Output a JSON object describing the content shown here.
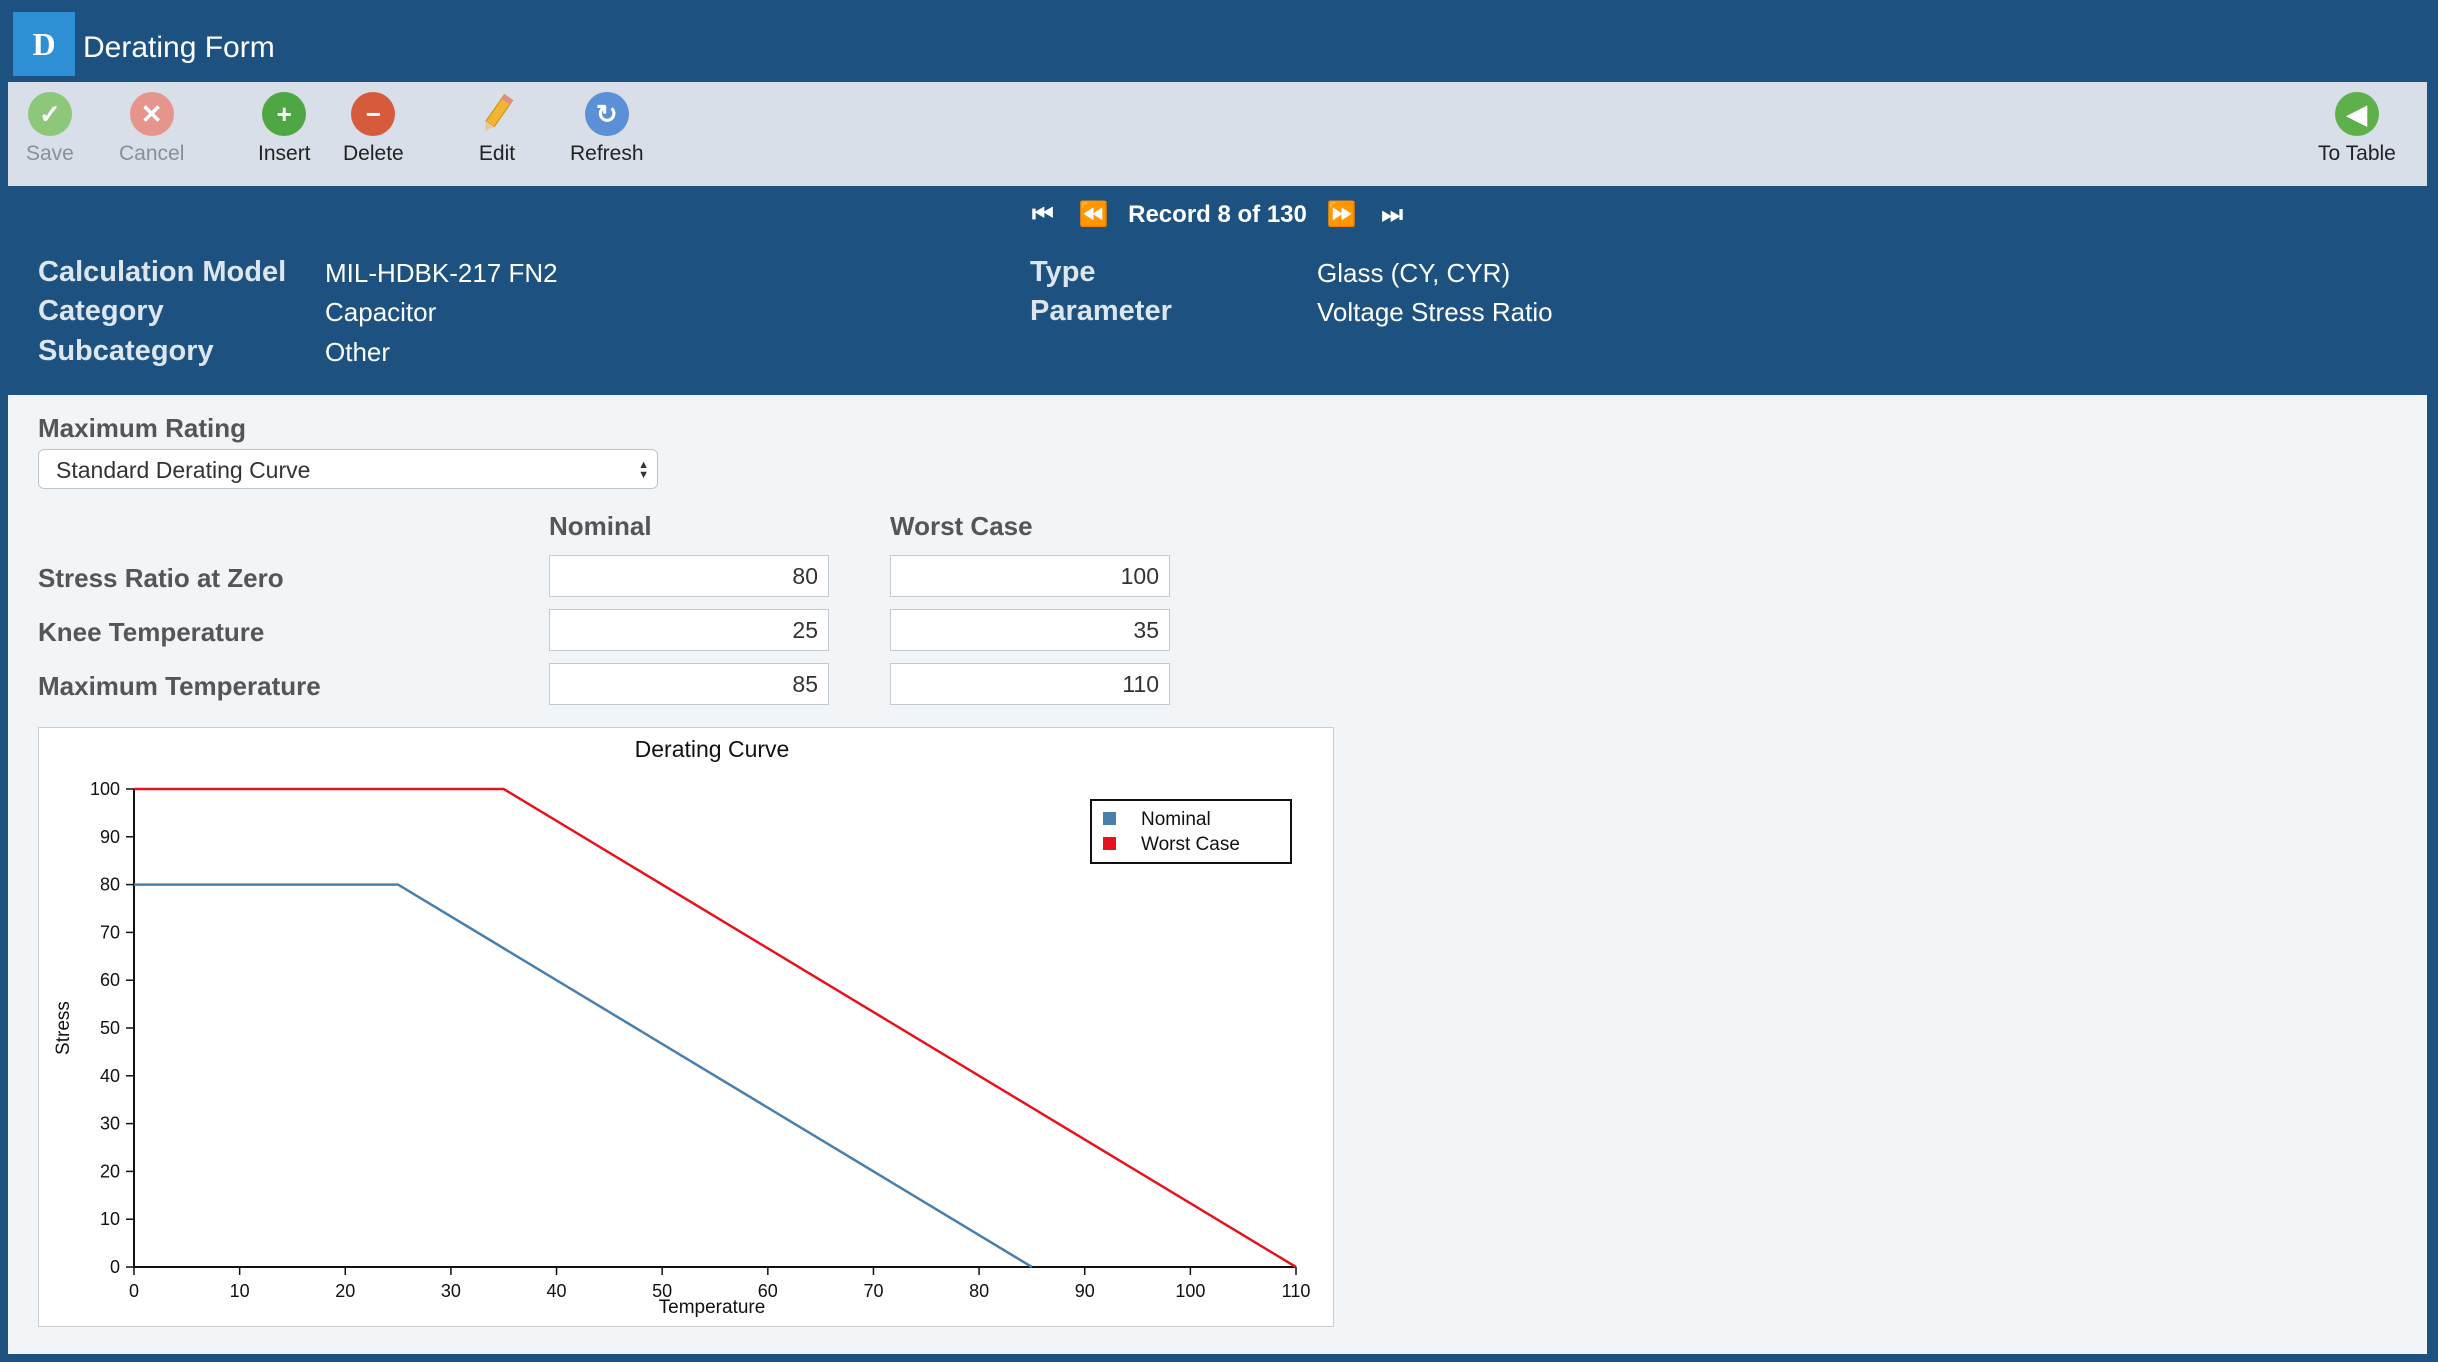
{
  "window": {
    "logo_letter": "D",
    "title": "Derating Form"
  },
  "toolbar": {
    "save": "Save",
    "cancel": "Cancel",
    "insert": "Insert",
    "delete": "Delete",
    "edit": "Edit",
    "refresh": "Refresh",
    "to_table": "To Table"
  },
  "record_nav": {
    "text": "Record 8 of 130"
  },
  "record": {
    "calc_model_label": "Calculation Model",
    "calc_model": "MIL-HDBK-217 FN2",
    "category_label": "Category",
    "category": "Capacitor",
    "subcategory_label": "Subcategory",
    "subcategory": "Other",
    "type_label": "Type",
    "type": "Glass (CY, CYR)",
    "parameter_label": "Parameter",
    "parameter": "Voltage Stress Ratio"
  },
  "form": {
    "max_rating_label": "Maximum Rating",
    "max_rating_value": "Standard Derating Curve",
    "col_nominal": "Nominal",
    "col_worst": "Worst Case",
    "rows": [
      {
        "label": "Stress Ratio at Zero",
        "nominal": "80",
        "worst": "100"
      },
      {
        "label": "Knee Temperature",
        "nominal": "25",
        "worst": "35"
      },
      {
        "label": "Maximum Temperature",
        "nominal": "85",
        "worst": "110"
      }
    ]
  },
  "chart_data": {
    "type": "line",
    "title": "Derating Curve",
    "xlabel": "Temperature",
    "ylabel": "Stress",
    "xlim": [
      0,
      110
    ],
    "ylim": [
      0,
      100
    ],
    "xticks": [
      0,
      10,
      20,
      30,
      40,
      50,
      60,
      70,
      80,
      90,
      100,
      110
    ],
    "yticks": [
      0,
      10,
      20,
      30,
      40,
      50,
      60,
      70,
      80,
      90,
      100
    ],
    "legend_position": "top-right",
    "series": [
      {
        "name": "Nominal",
        "color": "#4a7fad",
        "points": [
          [
            0,
            80
          ],
          [
            25,
            80
          ],
          [
            85,
            0
          ]
        ]
      },
      {
        "name": "Worst Case",
        "color": "#e8121e",
        "points": [
          [
            0,
            100
          ],
          [
            35,
            100
          ],
          [
            110,
            0
          ]
        ]
      }
    ]
  }
}
